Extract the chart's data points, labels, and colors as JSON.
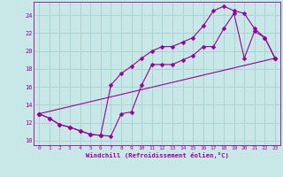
{
  "xlabel": "Windchill (Refroidissement éolien,°C)",
  "bg_color": "#c8e8e8",
  "grid_color": "#a8d0d0",
  "line_color": "#990099",
  "xlim": [
    -0.5,
    23.5
  ],
  "ylim": [
    9.5,
    25.5
  ],
  "xticks": [
    0,
    1,
    2,
    3,
    4,
    5,
    6,
    7,
    8,
    9,
    10,
    11,
    12,
    13,
    14,
    15,
    16,
    17,
    18,
    19,
    20,
    21,
    22,
    23
  ],
  "yticks": [
    10,
    12,
    14,
    16,
    18,
    20,
    22,
    24
  ],
  "line1_x": [
    0,
    1,
    2,
    3,
    4,
    5,
    6,
    7,
    8,
    9,
    10,
    11,
    12,
    13,
    14,
    15,
    16,
    17,
    18,
    19,
    20,
    21,
    22,
    23
  ],
  "line1_y": [
    13,
    12.5,
    11.8,
    11.5,
    11.1,
    10.7,
    10.6,
    10.5,
    13.0,
    13.2,
    16.2,
    18.5,
    18.5,
    18.5,
    19.0,
    19.5,
    20.5,
    20.5,
    22.5,
    24.2,
    19.2,
    22.2,
    21.5,
    19.2
  ],
  "line2_x": [
    0,
    1,
    2,
    3,
    4,
    5,
    6,
    7,
    8,
    9,
    10,
    11,
    12,
    13,
    14,
    15,
    16,
    17,
    18,
    19,
    20,
    21,
    22,
    23
  ],
  "line2_y": [
    13,
    12.5,
    11.8,
    11.5,
    11.1,
    10.7,
    10.6,
    16.2,
    17.5,
    18.3,
    19.2,
    20.0,
    20.5,
    20.5,
    21.0,
    21.5,
    22.8,
    24.5,
    25.0,
    24.5,
    24.2,
    22.5,
    21.5,
    19.2
  ],
  "line3_x": [
    0,
    23
  ],
  "line3_y": [
    13,
    19.2
  ],
  "marker": "D",
  "markersize": 2.5,
  "linewidth": 0.8
}
